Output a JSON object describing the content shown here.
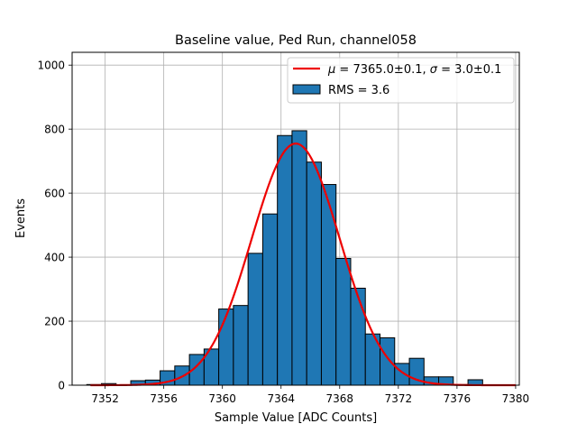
{
  "chart_data": {
    "type": "bar",
    "title": "Baseline value, Ped Run, channel058",
    "xlabel": "Sample Value [ADC Counts]",
    "ylabel": "Events",
    "xlim": [
      7349.75,
      7380.25
    ],
    "ylim": [
      0,
      1040
    ],
    "grid": true,
    "legend_position": "top-right",
    "x_ticks": [
      7352,
      7356,
      7360,
      7364,
      7368,
      7372,
      7376,
      7380
    ],
    "y_ticks": [
      0,
      200,
      400,
      600,
      800,
      1000
    ],
    "bin_width": 1,
    "bins": [
      {
        "left": 7350.75,
        "count": 2
      },
      {
        "left": 7351.75,
        "count": 5
      },
      {
        "left": 7352.75,
        "count": 1
      },
      {
        "left": 7353.75,
        "count": 14
      },
      {
        "left": 7354.75,
        "count": 16
      },
      {
        "left": 7355.75,
        "count": 45
      },
      {
        "left": 7356.75,
        "count": 60
      },
      {
        "left": 7357.75,
        "count": 96
      },
      {
        "left": 7358.75,
        "count": 113
      },
      {
        "left": 7359.75,
        "count": 238
      },
      {
        "left": 7360.75,
        "count": 249
      },
      {
        "left": 7361.75,
        "count": 412
      },
      {
        "left": 7362.75,
        "count": 535
      },
      {
        "left": 7363.75,
        "count": 780
      },
      {
        "left": 7364.75,
        "count": 795
      },
      {
        "left": 7365.75,
        "count": 697
      },
      {
        "left": 7366.75,
        "count": 627
      },
      {
        "left": 7367.75,
        "count": 396
      },
      {
        "left": 7368.75,
        "count": 303
      },
      {
        "left": 7369.75,
        "count": 160
      },
      {
        "left": 7370.75,
        "count": 148
      },
      {
        "left": 7371.75,
        "count": 68
      },
      {
        "left": 7372.75,
        "count": 84
      },
      {
        "left": 7373.75,
        "count": 26
      },
      {
        "left": 7374.75,
        "count": 26
      },
      {
        "left": 7375.75,
        "count": 2
      },
      {
        "left": 7376.75,
        "count": 17
      },
      {
        "left": 7377.75,
        "count": 1
      },
      {
        "left": 7378.75,
        "count": 1
      }
    ],
    "fit": {
      "type": "gaussian",
      "mu": 7365.0,
      "sigma": 3.0,
      "amplitude": 755,
      "x_range": [
        7351,
        7380
      ],
      "color": "#ee0000"
    },
    "series": [
      {
        "name": "fit",
        "label_parts": [
          "μ",
          " = 7365.0±0.1, ",
          "σ",
          " = 3.0±0.1"
        ],
        "color": "#ee0000"
      },
      {
        "name": "histogram",
        "label": "RMS = 3.6",
        "color": "#1f77b4",
        "edgecolor": "#000000"
      }
    ]
  }
}
